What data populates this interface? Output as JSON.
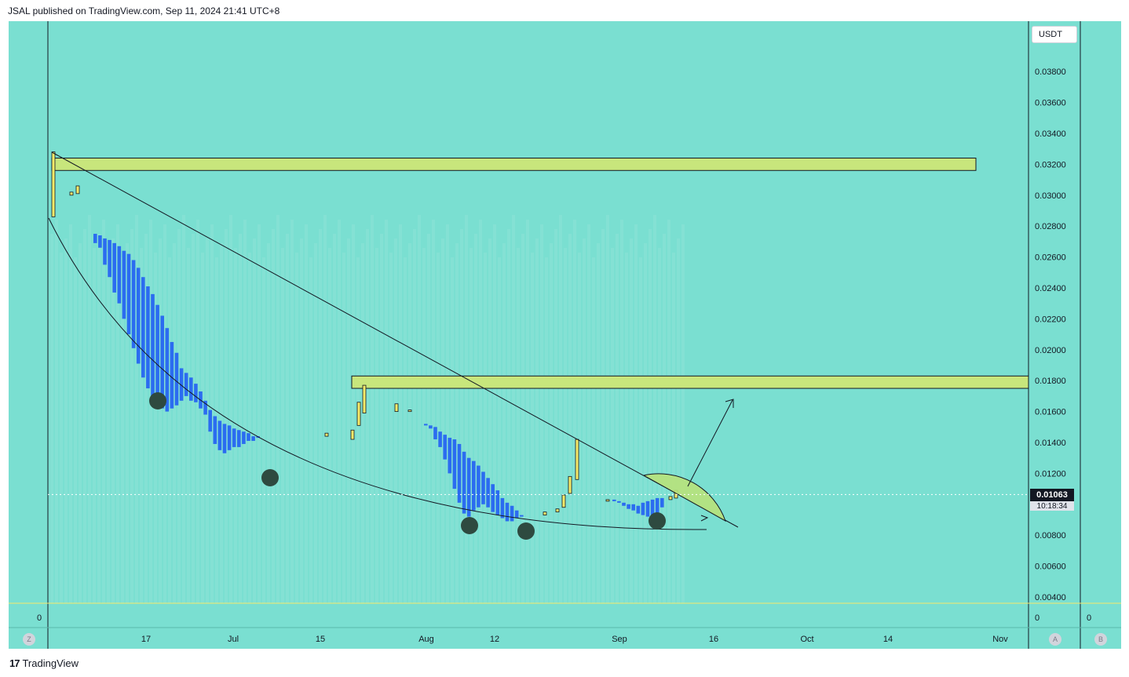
{
  "header": {
    "publish_line": "JSAL published on TradingView.com, Sep 11, 2024 21:41 UTC+8"
  },
  "footer": {
    "logo_glyph": "17",
    "brand": "TradingView"
  },
  "price_axis": {
    "currency": "USDT",
    "ticks": [
      "0.03800",
      "0.03600",
      "0.03400",
      "0.03200",
      "0.03000",
      "0.02800",
      "0.02600",
      "0.02400",
      "0.02200",
      "0.02000",
      "0.01800",
      "0.01600",
      "0.01400",
      "0.01200",
      "0.00800",
      "0.00600",
      "0.00400"
    ],
    "last_price": "0.01063",
    "countdown": "10:18:34"
  },
  "time_axis": {
    "labels": [
      "17",
      "Jul",
      "15",
      "Aug",
      "12",
      "Sep",
      "16",
      "Oct",
      "14",
      "Nov"
    ]
  },
  "pane_labels": {
    "left_zero": "0",
    "right_zero_a": "0",
    "right_zero_b": "0"
  },
  "buttons": {
    "z": "Z",
    "a": "A",
    "b": "B"
  },
  "colors": {
    "background": "#7adfd1",
    "bars": "#2b6cf0",
    "candles": "#f5ea6a",
    "zones": "#c8e67c"
  },
  "chart_data": {
    "type": "bar",
    "ylim": [
      0.004,
      0.0395
    ],
    "last_price": 0.01063,
    "resistance_zones": [
      [
        0.0316,
        0.0324
      ],
      [
        0.0175,
        0.0183
      ]
    ],
    "bars": [
      [
        0.0275,
        0.0269
      ],
      [
        0.0274,
        0.0266
      ],
      [
        0.0272,
        0.0255
      ],
      [
        0.0271,
        0.0247
      ],
      [
        0.0269,
        0.0237
      ],
      [
        0.0267,
        0.023
      ],
      [
        0.0264,
        0.022
      ],
      [
        0.0262,
        0.021
      ],
      [
        0.0258,
        0.0201
      ],
      [
        0.0253,
        0.0191
      ],
      [
        0.0247,
        0.0182
      ],
      [
        0.0241,
        0.0175
      ],
      [
        0.0236,
        0.017
      ],
      [
        0.0229,
        0.0165
      ],
      [
        0.0222,
        0.0162
      ],
      [
        0.0214,
        0.016
      ],
      [
        0.0205,
        0.0162
      ],
      [
        0.0198,
        0.0164
      ],
      [
        0.0188,
        0.0167
      ],
      [
        0.0185,
        0.017
      ],
      [
        0.0182,
        0.0167
      ],
      [
        0.0178,
        0.0166
      ],
      [
        0.0173,
        0.0162
      ],
      [
        0.0167,
        0.0158
      ],
      [
        0.0161,
        0.0147
      ],
      [
        0.0157,
        0.0139
      ],
      [
        0.0154,
        0.0135
      ],
      [
        0.0152,
        0.0133
      ],
      [
        0.0151,
        0.0135
      ],
      [
        0.0149,
        0.0137
      ],
      [
        0.0148,
        0.0137
      ],
      [
        0.0147,
        0.0139
      ],
      [
        0.0146,
        0.0141
      ],
      [
        0.0144,
        0.0141
      ],
      [
        0.0144,
        0.0143
      ]
    ],
    "bars2": [
      [
        0.0152,
        0.0151
      ],
      [
        0.0151,
        0.0149
      ],
      [
        0.015,
        0.0142
      ],
      [
        0.0147,
        0.0137
      ],
      [
        0.0145,
        0.0129
      ],
      [
        0.0143,
        0.012
      ],
      [
        0.0142,
        0.011
      ],
      [
        0.0139,
        0.0101
      ],
      [
        0.0134,
        0.0094
      ],
      [
        0.013,
        0.0092
      ],
      [
        0.0128,
        0.0096
      ],
      [
        0.0125,
        0.0098
      ],
      [
        0.0121,
        0.01
      ],
      [
        0.0117,
        0.0098
      ],
      [
        0.0113,
        0.0095
      ],
      [
        0.0109,
        0.0093
      ],
      [
        0.0104,
        0.0091
      ],
      [
        0.0101,
        0.0089
      ],
      [
        0.0099,
        0.0089
      ],
      [
        0.0096,
        0.0091
      ],
      [
        0.0093,
        0.0094
      ]
    ],
    "bars3": [
      [
        0.0103,
        0.0102
      ],
      [
        0.0102,
        0.0101
      ],
      [
        0.0101,
        0.0099
      ],
      [
        0.01,
        0.0097
      ],
      [
        0.01,
        0.0096
      ],
      [
        0.0099,
        0.0094
      ],
      [
        0.0101,
        0.0093
      ],
      [
        0.0102,
        0.0092
      ],
      [
        0.0103,
        0.0092
      ],
      [
        0.0104,
        0.0094
      ],
      [
        0.0104,
        0.0098
      ]
    ],
    "candles": [
      [
        0.0328,
        0.0286
      ],
      [
        0.0302,
        0.03
      ],
      [
        0.0306,
        0.0301
      ],
      [
        0.0146,
        0.0144
      ],
      [
        0.0148,
        0.0142
      ],
      [
        0.0166,
        0.0151
      ],
      [
        0.0177,
        0.0159
      ],
      [
        0.0165,
        0.016
      ],
      [
        0.0161,
        0.0161
      ],
      [
        0.0095,
        0.0093
      ],
      [
        0.0097,
        0.0095
      ],
      [
        0.0106,
        0.0098
      ],
      [
        0.0118,
        0.0107
      ],
      [
        0.0142,
        0.0116
      ],
      [
        0.0103,
        0.0102
      ],
      [
        0.0105,
        0.0103
      ],
      [
        0.0109,
        0.0104
      ]
    ]
  }
}
